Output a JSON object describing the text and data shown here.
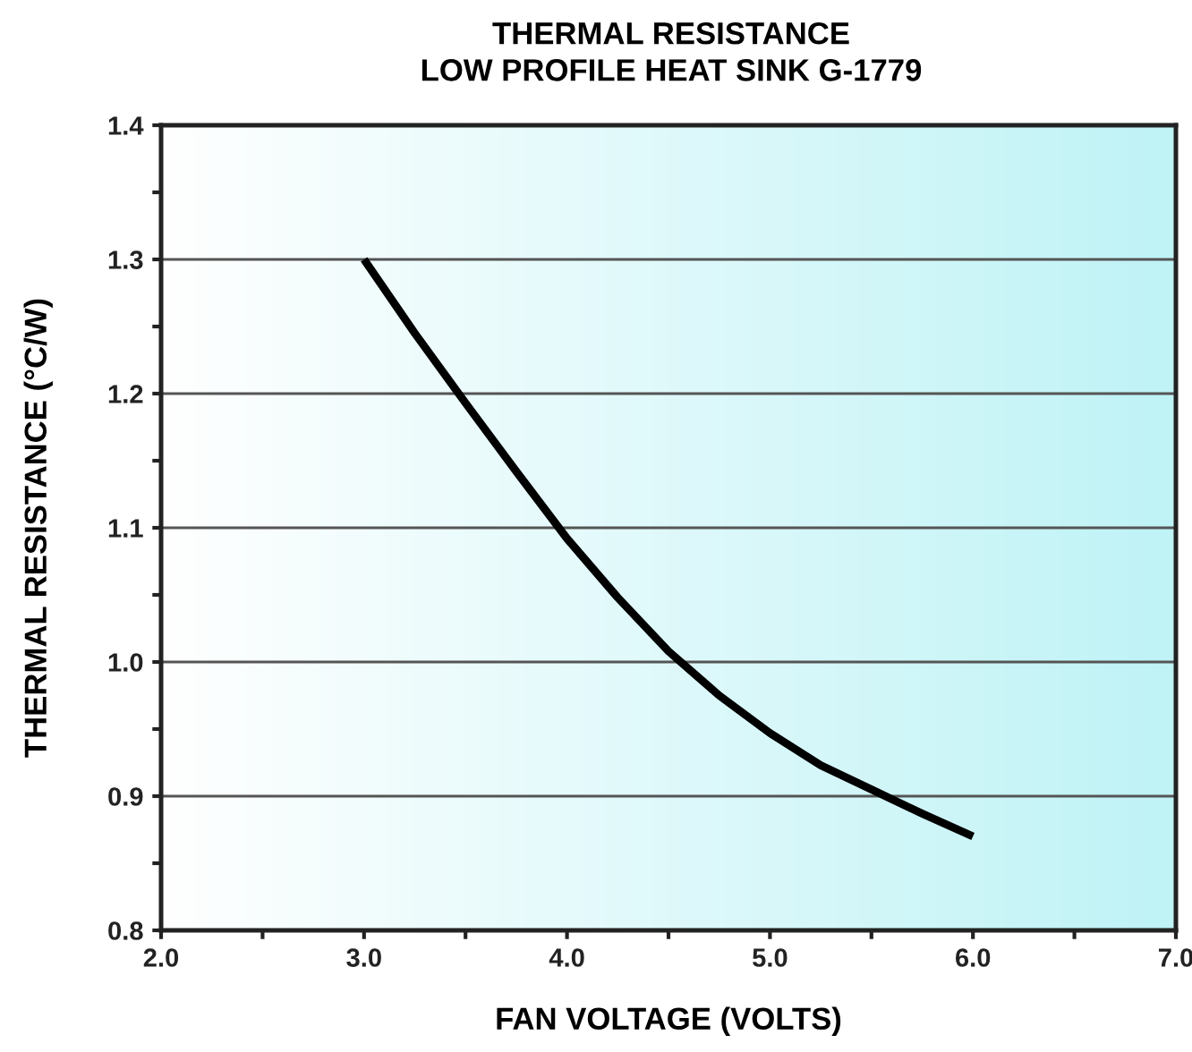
{
  "chart_data": {
    "type": "line",
    "title": "THERMAL RESISTANCE\nLOW PROFILE HEAT SINK G-1779",
    "xlabel": "FAN VOLTAGE (VOLTS)",
    "ylabel": "THERMAL RESISTANCE (°C/W)",
    "x": [
      3.0,
      3.25,
      3.5,
      3.75,
      4.0,
      4.25,
      4.5,
      4.75,
      5.0,
      5.25,
      5.5,
      5.75,
      6.0
    ],
    "series": [
      {
        "color": "#000000",
        "values": [
          1.3,
          1.245,
          1.193,
          1.142,
          1.092,
          1.048,
          1.008,
          0.975,
          0.947,
          0.923,
          0.905,
          0.887,
          0.87
        ]
      }
    ],
    "xlim": [
      2.0,
      7.0
    ],
    "ylim": [
      0.8,
      1.4
    ],
    "xticks": [
      {
        "value": 2.0,
        "label": "2.0"
      },
      {
        "value": 2.5,
        "label": null
      },
      {
        "value": 3.0,
        "label": "3.0"
      },
      {
        "value": 3.5,
        "label": null
      },
      {
        "value": 4.0,
        "label": "4.0"
      },
      {
        "value": 4.5,
        "label": null
      },
      {
        "value": 5.0,
        "label": "5.0"
      },
      {
        "value": 5.5,
        "label": null
      },
      {
        "value": 6.0,
        "label": "6.0"
      },
      {
        "value": 6.5,
        "label": null
      },
      {
        "value": 7.0,
        "label": "7.0"
      }
    ],
    "yticks": [
      {
        "value": 0.8,
        "label": "0.8"
      },
      {
        "value": 0.85,
        "label": null
      },
      {
        "value": 0.9,
        "label": "0.9"
      },
      {
        "value": 0.95,
        "label": null
      },
      {
        "value": 1.0,
        "label": "1.0"
      },
      {
        "value": 1.05,
        "label": null
      },
      {
        "value": 1.1,
        "label": "1.1"
      },
      {
        "value": 1.15,
        "label": null
      },
      {
        "value": 1.2,
        "label": "1.2"
      },
      {
        "value": 1.25,
        "label": null
      },
      {
        "value": 1.3,
        "label": "1.3"
      },
      {
        "value": 1.35,
        "label": null
      },
      {
        "value": 1.4,
        "label": "1.4"
      }
    ],
    "grid": "y",
    "marker": "none",
    "line_style": "solid"
  }
}
